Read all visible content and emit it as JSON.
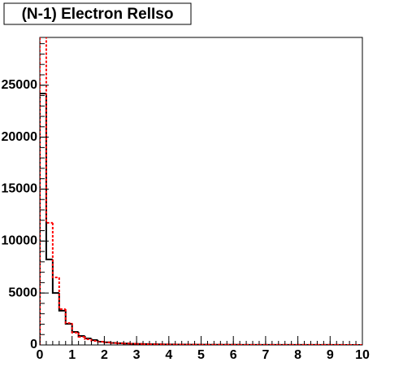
{
  "chart_data": {
    "type": "histogram",
    "title": "(N-1) Electron RelIso",
    "bins": [
      0,
      0.2,
      0.4,
      0.6,
      0.8,
      1,
      1.2,
      1.4,
      1.6,
      1.8,
      2,
      2.2,
      2.4,
      2.6,
      2.8,
      3,
      3.2,
      3.4,
      3.6,
      3.8,
      4,
      4.2,
      4.4,
      4.6,
      4.8,
      5,
      5.2,
      5.4,
      5.6,
      5.8,
      6,
      6.2,
      6.4,
      6.6,
      6.8,
      7,
      7.2,
      7.4,
      7.6,
      7.8,
      8,
      8.2,
      8.4,
      8.6,
      8.8,
      9,
      9.2,
      9.4,
      9.6,
      9.8,
      10
    ],
    "series": [
      {
        "color": "#000000",
        "linestyle": "solid",
        "values": [
          24200,
          8230,
          5000,
          3300,
          2040,
          1250,
          860,
          630,
          470,
          310,
          250,
          200,
          170,
          140,
          120,
          100,
          85,
          70,
          60,
          50,
          45,
          40,
          35,
          30,
          28,
          25,
          22,
          20,
          18,
          16,
          15,
          14,
          13,
          12,
          11,
          10,
          9,
          9,
          8,
          8,
          7,
          7,
          6,
          6,
          5,
          5,
          5,
          4,
          4,
          4
        ]
      },
      {
        "color": "#ff0000",
        "linestyle": "dashed",
        "values": [
          30500,
          11760,
          6500,
          3450,
          2100,
          1180,
          780,
          550,
          390,
          310,
          240,
          190,
          160,
          135,
          115,
          95,
          80,
          68,
          58,
          50,
          44,
          38,
          34,
          30,
          27,
          24,
          21,
          19,
          17,
          16,
          15,
          14,
          13,
          12,
          11,
          10,
          9,
          9,
          8,
          8,
          7,
          7,
          6,
          6,
          5,
          5,
          5,
          4,
          4,
          4
        ]
      }
    ],
    "xlim": [
      0,
      10
    ],
    "xticks": [
      0,
      1,
      2,
      3,
      4,
      5,
      6,
      7,
      8,
      9,
      10
    ],
    "ylim": [
      0,
      29600
    ],
    "yticks": [
      0,
      5000,
      10000,
      15000,
      20000,
      25000
    ]
  }
}
